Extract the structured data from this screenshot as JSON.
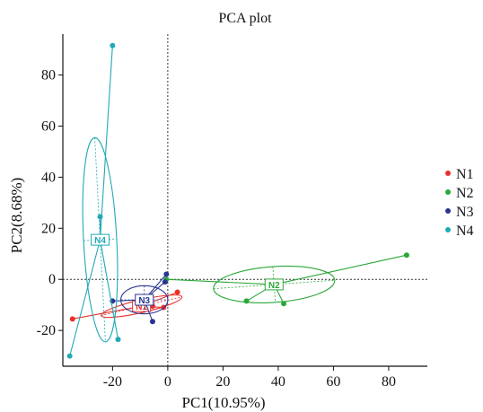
{
  "chart_data": {
    "type": "scatter",
    "title": "PCA plot",
    "xlabel": "PC1(10.95%)",
    "ylabel": "PC2(8.68%)",
    "xlim": [
      -38,
      94
    ],
    "ylim": [
      -34,
      96
    ],
    "xticks": [
      -20,
      0,
      20,
      40,
      60,
      80
    ],
    "yticks": [
      -20,
      0,
      20,
      40,
      60,
      80
    ],
    "xticklabels": [
      "-20",
      "0",
      "20",
      "40",
      "60",
      "80"
    ],
    "yticklabels": [
      "-20",
      "0",
      "20",
      "40",
      "60",
      "80"
    ],
    "grid": false,
    "reference_lines": {
      "x": 0,
      "y": 0
    },
    "legend_position": "right",
    "series": [
      {
        "name": "N1",
        "color": "#e8302a",
        "points": [
          [
            -34.5,
            -15.5
          ],
          [
            -1.5,
            -11
          ],
          [
            3.5,
            -5
          ],
          [
            -5.5,
            -10.5
          ]
        ],
        "centroid": [
          -9.5,
          -10.5
        ],
        "ellipse": {
          "rx": 15,
          "ry": 2.5,
          "angle": 13
        }
      },
      {
        "name": "N2",
        "color": "#2aa738",
        "points": [
          [
            -0.5,
            0
          ],
          [
            28.5,
            -8.5
          ],
          [
            42,
            -9.5
          ],
          [
            86.5,
            9.5
          ]
        ],
        "centroid": [
          38.5,
          -2
        ],
        "ellipse": {
          "rx": 22,
          "ry": 7,
          "angle": 4
        }
      },
      {
        "name": "N3",
        "color": "#283593",
        "points": [
          [
            -20,
            -8.5
          ],
          [
            -5.5,
            -16.5
          ],
          [
            -0.5,
            2
          ],
          [
            -1,
            -1
          ]
        ],
        "centroid": [
          -8.5,
          -8
        ],
        "ellipse": {
          "rx": 8.5,
          "ry": 5.5,
          "angle": 0
        }
      },
      {
        "name": "N4",
        "color": "#22a9b6",
        "points": [
          [
            -20,
            91.5
          ],
          [
            -24.5,
            24.5
          ],
          [
            -18,
            -23.5
          ],
          [
            -35.5,
            -30
          ]
        ],
        "centroid": [
          -24.5,
          15.5
        ],
        "ellipse": {
          "rx": 6,
          "ry": 40,
          "angle": 3
        }
      }
    ]
  }
}
